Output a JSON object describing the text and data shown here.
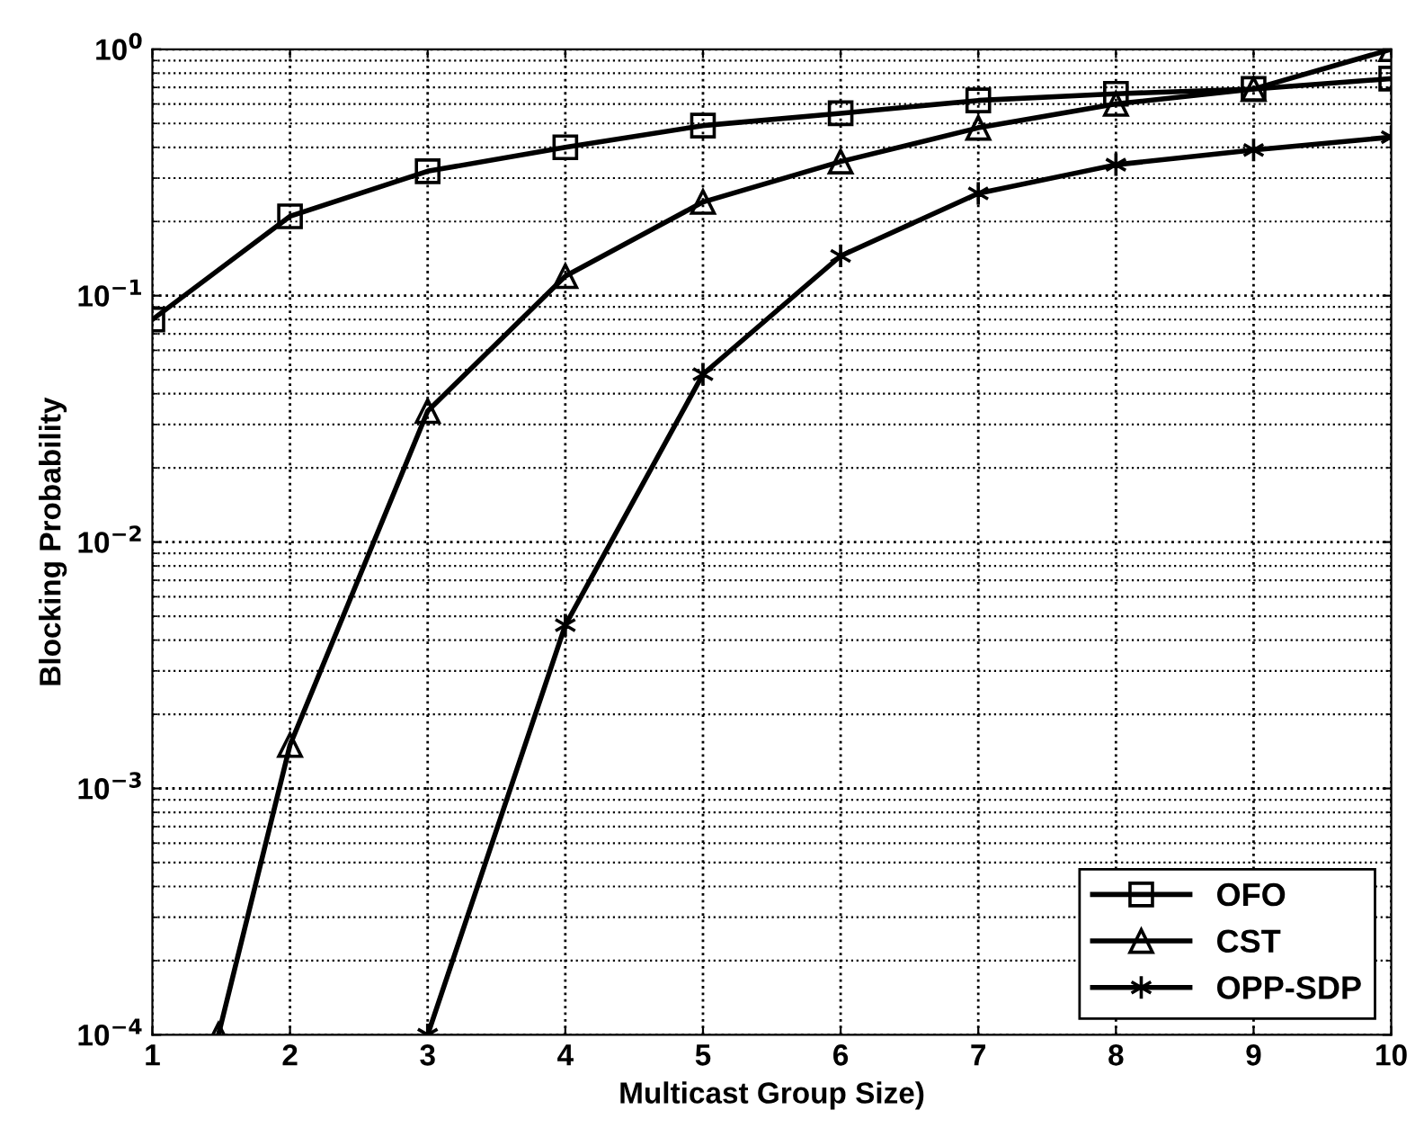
{
  "chart_data": {
    "type": "line",
    "xlabel": "Multicast Group Size)",
    "ylabel": "Blocking Probability",
    "log": "y",
    "xlim": [
      1,
      10
    ],
    "xticks": [
      1,
      2,
      3,
      4,
      5,
      6,
      7,
      8,
      9,
      10
    ],
    "ylim": [
      0.0001,
      1
    ],
    "yticks": [
      {
        "value": 0.0001,
        "label": "10$^{−4}$"
      },
      {
        "value": 0.001,
        "label": "10$^{−3}$"
      },
      {
        "value": 0.01,
        "label": "10$^{−2}$"
      },
      {
        "value": 0.1,
        "label": "10$^{−1}$"
      },
      {
        "value": 1,
        "label": "10$^{0}$"
      }
    ],
    "grid": true,
    "legend": "bottom right",
    "line_style": "solid",
    "series": [
      {
        "name": "OFO",
        "color": "#000000",
        "marker": "square",
        "x": [
          1,
          2,
          3,
          4,
          5,
          6,
          7,
          8,
          9,
          10
        ],
        "values": [
          0.08,
          0.21,
          0.32,
          0.4,
          0.49,
          0.55,
          0.62,
          0.66,
          0.69,
          0.76
        ]
      },
      {
        "name": "CST",
        "color": "#000000",
        "marker": "triangle",
        "x": [
          1.48,
          2,
          3,
          4,
          5,
          6,
          7,
          8,
          9,
          10
        ],
        "values": [
          0.0001,
          0.0015,
          0.034,
          0.12,
          0.24,
          0.35,
          0.48,
          0.6,
          0.69,
          1.0
        ]
      },
      {
        "name": "OPP-SDP",
        "color": "#000000",
        "marker": "cross",
        "x": [
          3,
          4,
          5,
          6,
          7,
          8,
          9,
          10
        ],
        "values": [
          0.0001,
          0.0046,
          0.048,
          0.145,
          0.26,
          0.34,
          0.39,
          0.44
        ]
      }
    ]
  }
}
